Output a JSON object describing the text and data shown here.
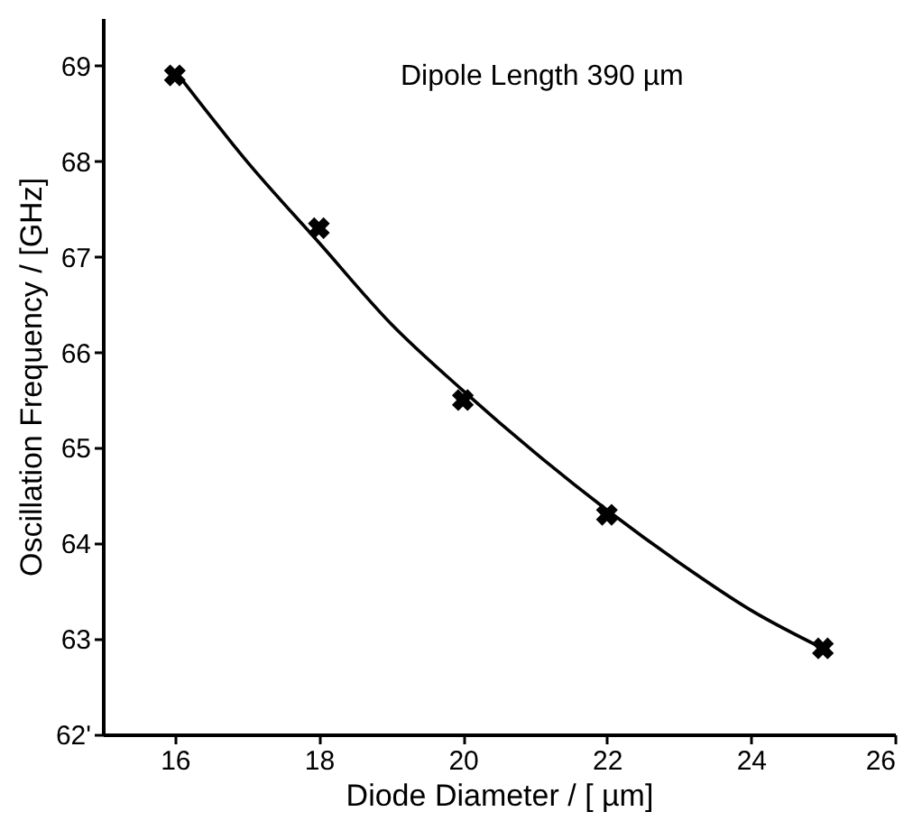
{
  "chart_data": {
    "type": "scatter",
    "xlabel": "Diode Diameter / [ µm]",
    "ylabel": "Oscillation Frequency / [GHz]",
    "annotations": [
      "Dipole Length 390 µm"
    ],
    "series": [
      {
        "type": "scatter",
        "marker": "cross",
        "color": "#000000",
        "x": [
          16,
          18,
          20,
          22,
          25
        ],
        "values": [
          68.9,
          67.3,
          65.5,
          64.3,
          62.9
        ]
      },
      {
        "type": "line",
        "marker": "none",
        "line_style": "solid",
        "color": "#000000",
        "x": [
          16,
          17,
          18,
          19,
          20,
          21,
          22,
          23,
          24,
          25
        ],
        "values": [
          68.95,
          68.0,
          67.15,
          66.3,
          65.6,
          64.95,
          64.35,
          63.8,
          63.3,
          62.9
        ]
      }
    ],
    "xlim": [
      15,
      26
    ],
    "xticks": [
      16,
      18,
      20,
      22,
      24,
      26
    ],
    "ylim": [
      62,
      69.5
    ],
    "yticks": [
      {
        "value": 62,
        "label": "62'"
      },
      63,
      64,
      65,
      66,
      67,
      68,
      69
    ],
    "grid": false
  }
}
